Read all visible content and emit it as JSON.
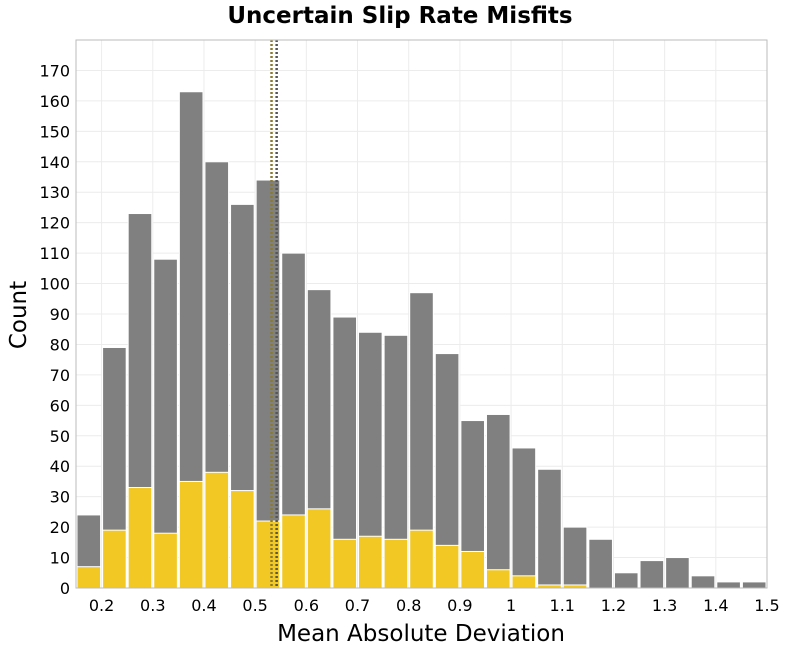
{
  "chart_data": {
    "type": "bar",
    "title": "Uncertain Slip Rate Misfits",
    "xlabel": "Mean Absolute Deviation",
    "ylabel": "Count",
    "xlim": [
      0.15,
      1.5
    ],
    "ylim": [
      0,
      180
    ],
    "bin_width": 0.05,
    "x": [
      0.175,
      0.225,
      0.275,
      0.325,
      0.375,
      0.425,
      0.475,
      0.525,
      0.575,
      0.625,
      0.675,
      0.725,
      0.775,
      0.825,
      0.875,
      0.925,
      0.975,
      1.025,
      1.075,
      1.125,
      1.175,
      1.225,
      1.275,
      1.325,
      1.375,
      1.425,
      1.475
    ],
    "series": [
      {
        "color": "#808080",
        "values": [
          24,
          79,
          123,
          108,
          163,
          140,
          126,
          134,
          110,
          98,
          89,
          84,
          83,
          97,
          77,
          55,
          57,
          46,
          39,
          20,
          16,
          5,
          9,
          10,
          4,
          2,
          2
        ]
      },
      {
        "color": "#f2c924",
        "values": [
          7,
          19,
          33,
          18,
          35,
          38,
          32,
          22,
          24,
          26,
          16,
          17,
          16,
          19,
          14,
          12,
          6,
          4,
          1,
          1,
          0,
          0,
          0,
          0,
          0,
          0,
          0
        ]
      }
    ],
    "reference_lines": [
      {
        "x": 0.532,
        "color": "#8b7a2e",
        "style": "dotted"
      },
      {
        "x": 0.542,
        "color": "#555555",
        "style": "dotted"
      }
    ],
    "xticks": [
      "0.2",
      "0.3",
      "0.4",
      "0.5",
      "0.6",
      "0.7",
      "0.8",
      "0.9",
      "1",
      "1.1",
      "1.2",
      "1.3",
      "1.4",
      "1.5"
    ],
    "xtick_values": [
      0.2,
      0.3,
      0.4,
      0.5,
      0.6,
      0.7,
      0.8,
      0.9,
      1.0,
      1.1,
      1.2,
      1.3,
      1.4,
      1.5
    ],
    "yticks": [
      "0",
      "10",
      "20",
      "30",
      "40",
      "50",
      "60",
      "70",
      "80",
      "90",
      "100",
      "110",
      "120",
      "130",
      "140",
      "150",
      "160",
      "170"
    ],
    "ytick_values": [
      0,
      10,
      20,
      30,
      40,
      50,
      60,
      70,
      80,
      90,
      100,
      110,
      120,
      130,
      140,
      150,
      160,
      170
    ],
    "grid": true,
    "legend": "none"
  }
}
